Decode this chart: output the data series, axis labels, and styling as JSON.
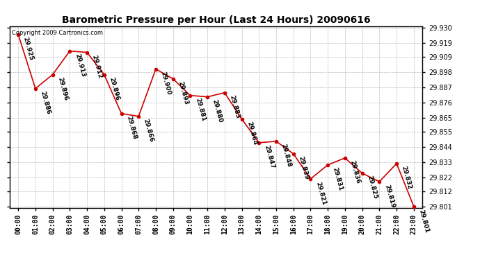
{
  "title": "Barometric Pressure per Hour (Last 24 Hours) 20090616",
  "copyright": "Copyright 2009 Cartronics.com",
  "hours": [
    "00:00",
    "01:00",
    "02:00",
    "03:00",
    "04:00",
    "05:00",
    "06:00",
    "07:00",
    "08:00",
    "09:00",
    "10:00",
    "11:00",
    "12:00",
    "13:00",
    "14:00",
    "15:00",
    "16:00",
    "17:00",
    "18:00",
    "19:00",
    "20:00",
    "21:00",
    "22:00",
    "23:00"
  ],
  "values": [
    29.925,
    29.886,
    29.896,
    29.913,
    29.912,
    29.896,
    29.868,
    29.866,
    29.9,
    29.893,
    29.881,
    29.88,
    29.883,
    29.864,
    29.847,
    29.848,
    29.839,
    29.821,
    29.831,
    29.836,
    29.825,
    29.819,
    29.832,
    29.801
  ],
  "ylim_min": 29.8,
  "ylim_max": 29.931,
  "line_color": "#cc0000",
  "marker_color": "#cc0000",
  "bg_color": "#ffffff",
  "plot_bg_color": "#ffffff",
  "grid_color": "#bbbbbb",
  "title_fontsize": 10,
  "tick_fontsize": 7,
  "annot_fontsize": 6.5,
  "copyright_fontsize": 6,
  "yticks": [
    29.801,
    29.812,
    29.822,
    29.833,
    29.844,
    29.855,
    29.865,
    29.876,
    29.887,
    29.898,
    29.909,
    29.919,
    29.93
  ]
}
